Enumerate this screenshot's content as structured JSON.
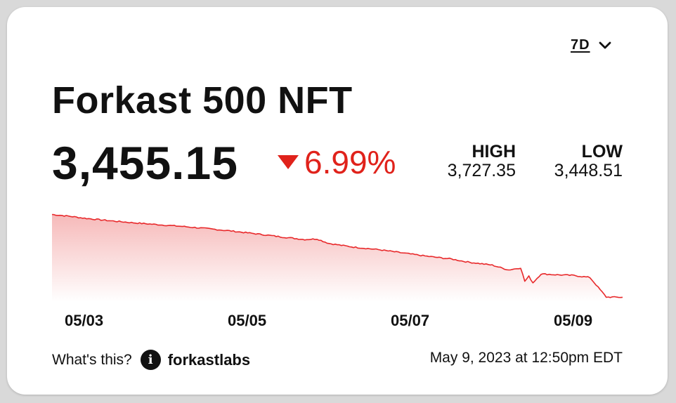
{
  "widget": {
    "range": {
      "selected": "7D"
    },
    "title": "Forkast 500 NFT",
    "price": "3,455.15",
    "change": {
      "direction": "down",
      "percent": "6.99%",
      "color": "#e0221b"
    },
    "high": {
      "label": "HIGH",
      "value": "3,727.35"
    },
    "low": {
      "label": "LOW",
      "value": "3,448.51"
    },
    "footer": {
      "whats_this": "What's this?",
      "info_icon": "info-icon",
      "brand": "forkastlabs",
      "timestamp": "May 9, 2023 at 12:50pm EDT"
    }
  },
  "chart_data": {
    "type": "area",
    "title": "",
    "xlabel": "",
    "ylabel": "",
    "x_tick_labels": [
      "05/03",
      "05/05",
      "05/07",
      "05/09"
    ],
    "series": [
      {
        "line_color": "#e8292b",
        "fill_color": "#f6b9b9",
        "x_day": [
          2.6,
          2.8,
          3.0,
          3.3,
          3.6,
          3.9,
          4.2,
          4.5,
          4.8,
          5.1,
          5.4,
          5.7,
          5.85,
          6.0,
          6.3,
          6.6,
          6.9,
          7.2,
          7.5,
          7.7,
          8.0,
          8.2,
          8.35,
          8.4,
          8.45,
          8.5,
          8.6,
          8.8,
          9.0,
          9.2,
          9.4,
          9.6
        ],
        "values": [
          3727.35,
          3722,
          3715,
          3707,
          3700,
          3694,
          3688,
          3681,
          3673,
          3664,
          3654,
          3645,
          3647,
          3632,
          3620,
          3612,
          3601,
          3590,
          3581,
          3571,
          3561,
          3545,
          3552,
          3508,
          3524,
          3503,
          3532,
          3529,
          3527,
          3520,
          3456,
          3455.15
        ]
      }
    ],
    "ylim": [
      3440,
      3740
    ],
    "xlim": [
      2.6,
      9.6
    ],
    "grid": false,
    "legend": "none"
  }
}
